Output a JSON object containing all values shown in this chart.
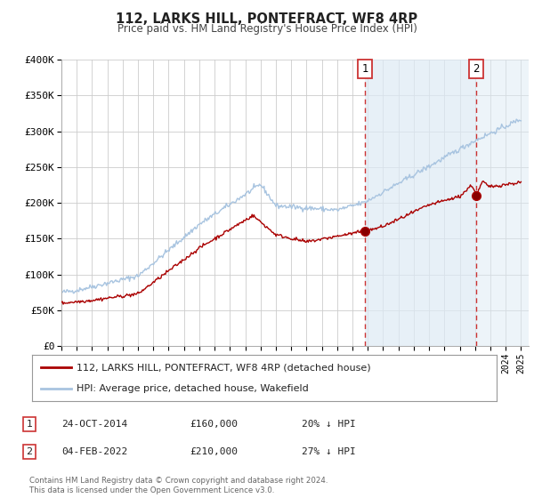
{
  "title": "112, LARKS HILL, PONTEFRACT, WF8 4RP",
  "subtitle": "Price paid vs. HM Land Registry's House Price Index (HPI)",
  "ylim": [
    0,
    400000
  ],
  "yticks": [
    0,
    50000,
    100000,
    150000,
    200000,
    250000,
    300000,
    350000,
    400000
  ],
  "ytick_labels": [
    "£0",
    "£50K",
    "£100K",
    "£150K",
    "£200K",
    "£250K",
    "£300K",
    "£350K",
    "£400K"
  ],
  "xlim_start": 1995.0,
  "xlim_end": 2025.5,
  "hpi_color": "#a8c4e0",
  "hpi_fill_color": "#ddeaf5",
  "price_color": "#aa0000",
  "marker1_date": 2014.81,
  "marker1_price": 160000,
  "marker2_date": 2022.09,
  "marker2_price": 210000,
  "vline_color": "#cc3333",
  "background_color": "#ffffff",
  "grid_color": "#cccccc",
  "legend_label_price": "112, LARKS HILL, PONTEFRACT, WF8 4RP (detached house)",
  "legend_label_hpi": "HPI: Average price, detached house, Wakefield",
  "annotation1_date": "24-OCT-2014",
  "annotation1_price": "£160,000",
  "annotation1_hpi": "20% ↓ HPI",
  "annotation2_date": "04-FEB-2022",
  "annotation2_price": "£210,000",
  "annotation2_hpi": "27% ↓ HPI",
  "footer1": "Contains HM Land Registry data © Crown copyright and database right 2024.",
  "footer2": "This data is licensed under the Open Government Licence v3.0."
}
